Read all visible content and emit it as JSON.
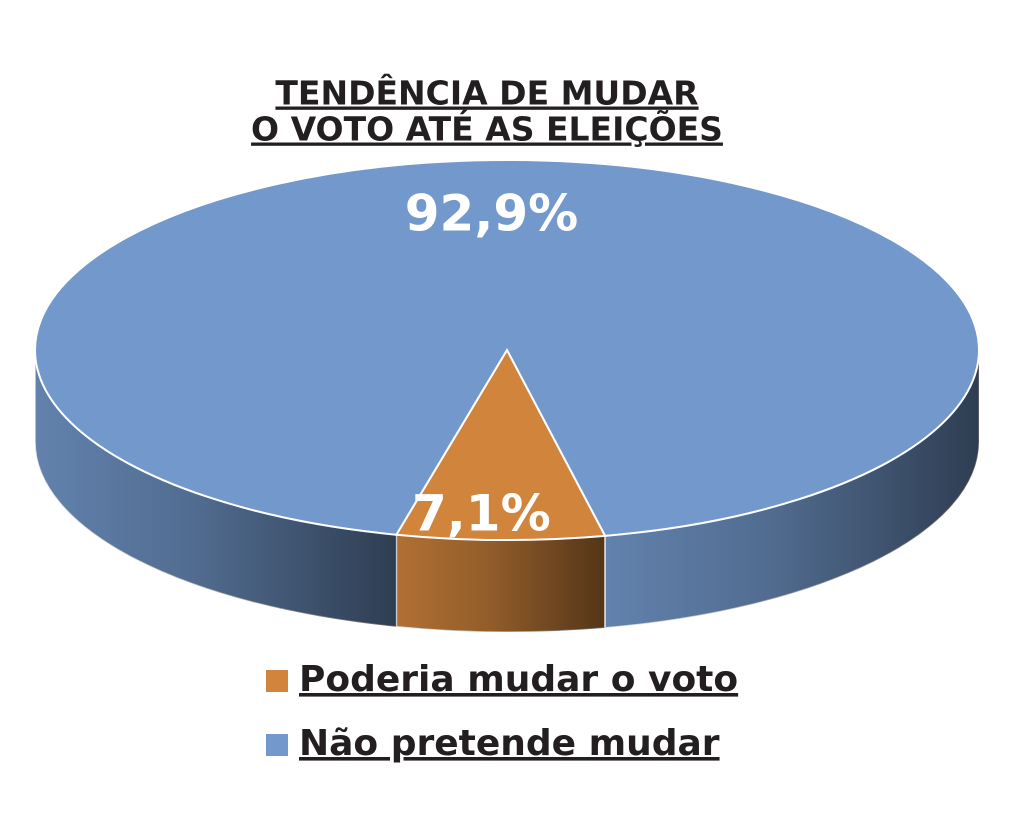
{
  "chart_data": {
    "type": "pie",
    "title": [
      "TENDÊNCIA DE MUDAR",
      "O VOTO ATÉ AS ELEIÇÕES"
    ],
    "categories": [
      "Poderia mudar o voto",
      "Não pretende mudar"
    ],
    "values": [
      7.1,
      92.9
    ],
    "value_labels": [
      "7,1%",
      "92,9%"
    ],
    "colors": [
      "#d0843c",
      "#7399cc"
    ]
  }
}
